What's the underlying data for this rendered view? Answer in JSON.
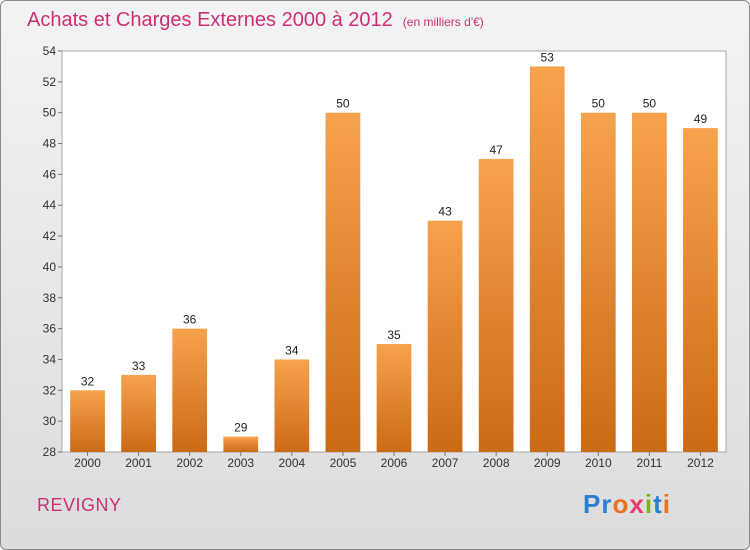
{
  "header": {
    "title": "Achats et Charges Externes 2000 à 2012",
    "subtitle": "(en milliers d'€)"
  },
  "footer": {
    "commune": "REVIGNY",
    "logo_letters": [
      "P",
      "r",
      "o",
      "x",
      "i",
      "t",
      "i"
    ],
    "logo_colors": [
      "#2a7fd0",
      "#2a7fd0",
      "#e8731f",
      "#e83c6e",
      "#7cb518",
      "#2a7fd0",
      "#e8731f"
    ]
  },
  "chart_data": {
    "type": "bar",
    "title": "Achats et Charges Externes 2000 à 2012",
    "subtitle": "(en milliers d'€)",
    "categories": [
      "2000",
      "2001",
      "2002",
      "2003",
      "2004",
      "2005",
      "2006",
      "2007",
      "2008",
      "2009",
      "2010",
      "2011",
      "2012"
    ],
    "values": [
      32,
      33,
      36,
      29,
      34,
      50,
      35,
      43,
      47,
      53,
      50,
      50,
      49
    ],
    "ylim": [
      28,
      54
    ],
    "yticks": [
      28,
      30,
      32,
      34,
      36,
      38,
      40,
      42,
      44,
      46,
      48,
      50,
      52,
      54
    ],
    "grid": false,
    "bar_color_top": "#f7a24d",
    "bar_color_bottom": "#cc6a14"
  }
}
